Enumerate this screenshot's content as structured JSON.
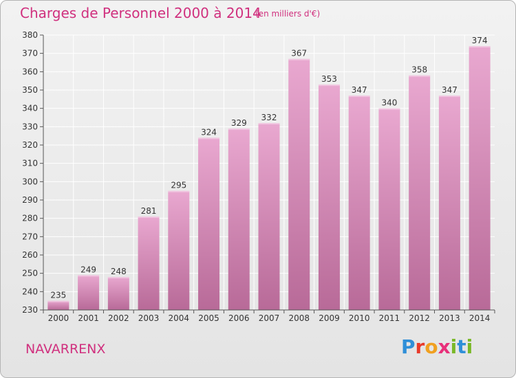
{
  "title": "Charges de Personnel 2000 à 2014",
  "unit": "(en milliers d'€)",
  "town": "NAVARRENX",
  "logo": [
    "P",
    "r",
    "o",
    "x",
    "i",
    "t",
    "i"
  ],
  "colors": {
    "bar_top": "#e9a8d0",
    "bar_bottom": "#b86a98",
    "accent": "#d0307e"
  },
  "chart_data": {
    "type": "bar",
    "title": "Charges de Personnel 2000 à 2014",
    "xlabel": "",
    "ylabel": "",
    "categories": [
      "2000",
      "2001",
      "2002",
      "2003",
      "2004",
      "2005",
      "2006",
      "2007",
      "2008",
      "2009",
      "2010",
      "2011",
      "2012",
      "2013",
      "2014"
    ],
    "values": [
      235,
      249,
      248,
      281,
      295,
      324,
      329,
      332,
      367,
      353,
      347,
      340,
      358,
      347,
      374
    ],
    "ylim": [
      230,
      380
    ],
    "yticks": [
      230,
      240,
      250,
      260,
      270,
      280,
      290,
      300,
      310,
      320,
      330,
      340,
      350,
      360,
      370,
      380
    ],
    "grid": true,
    "legend": "none"
  }
}
